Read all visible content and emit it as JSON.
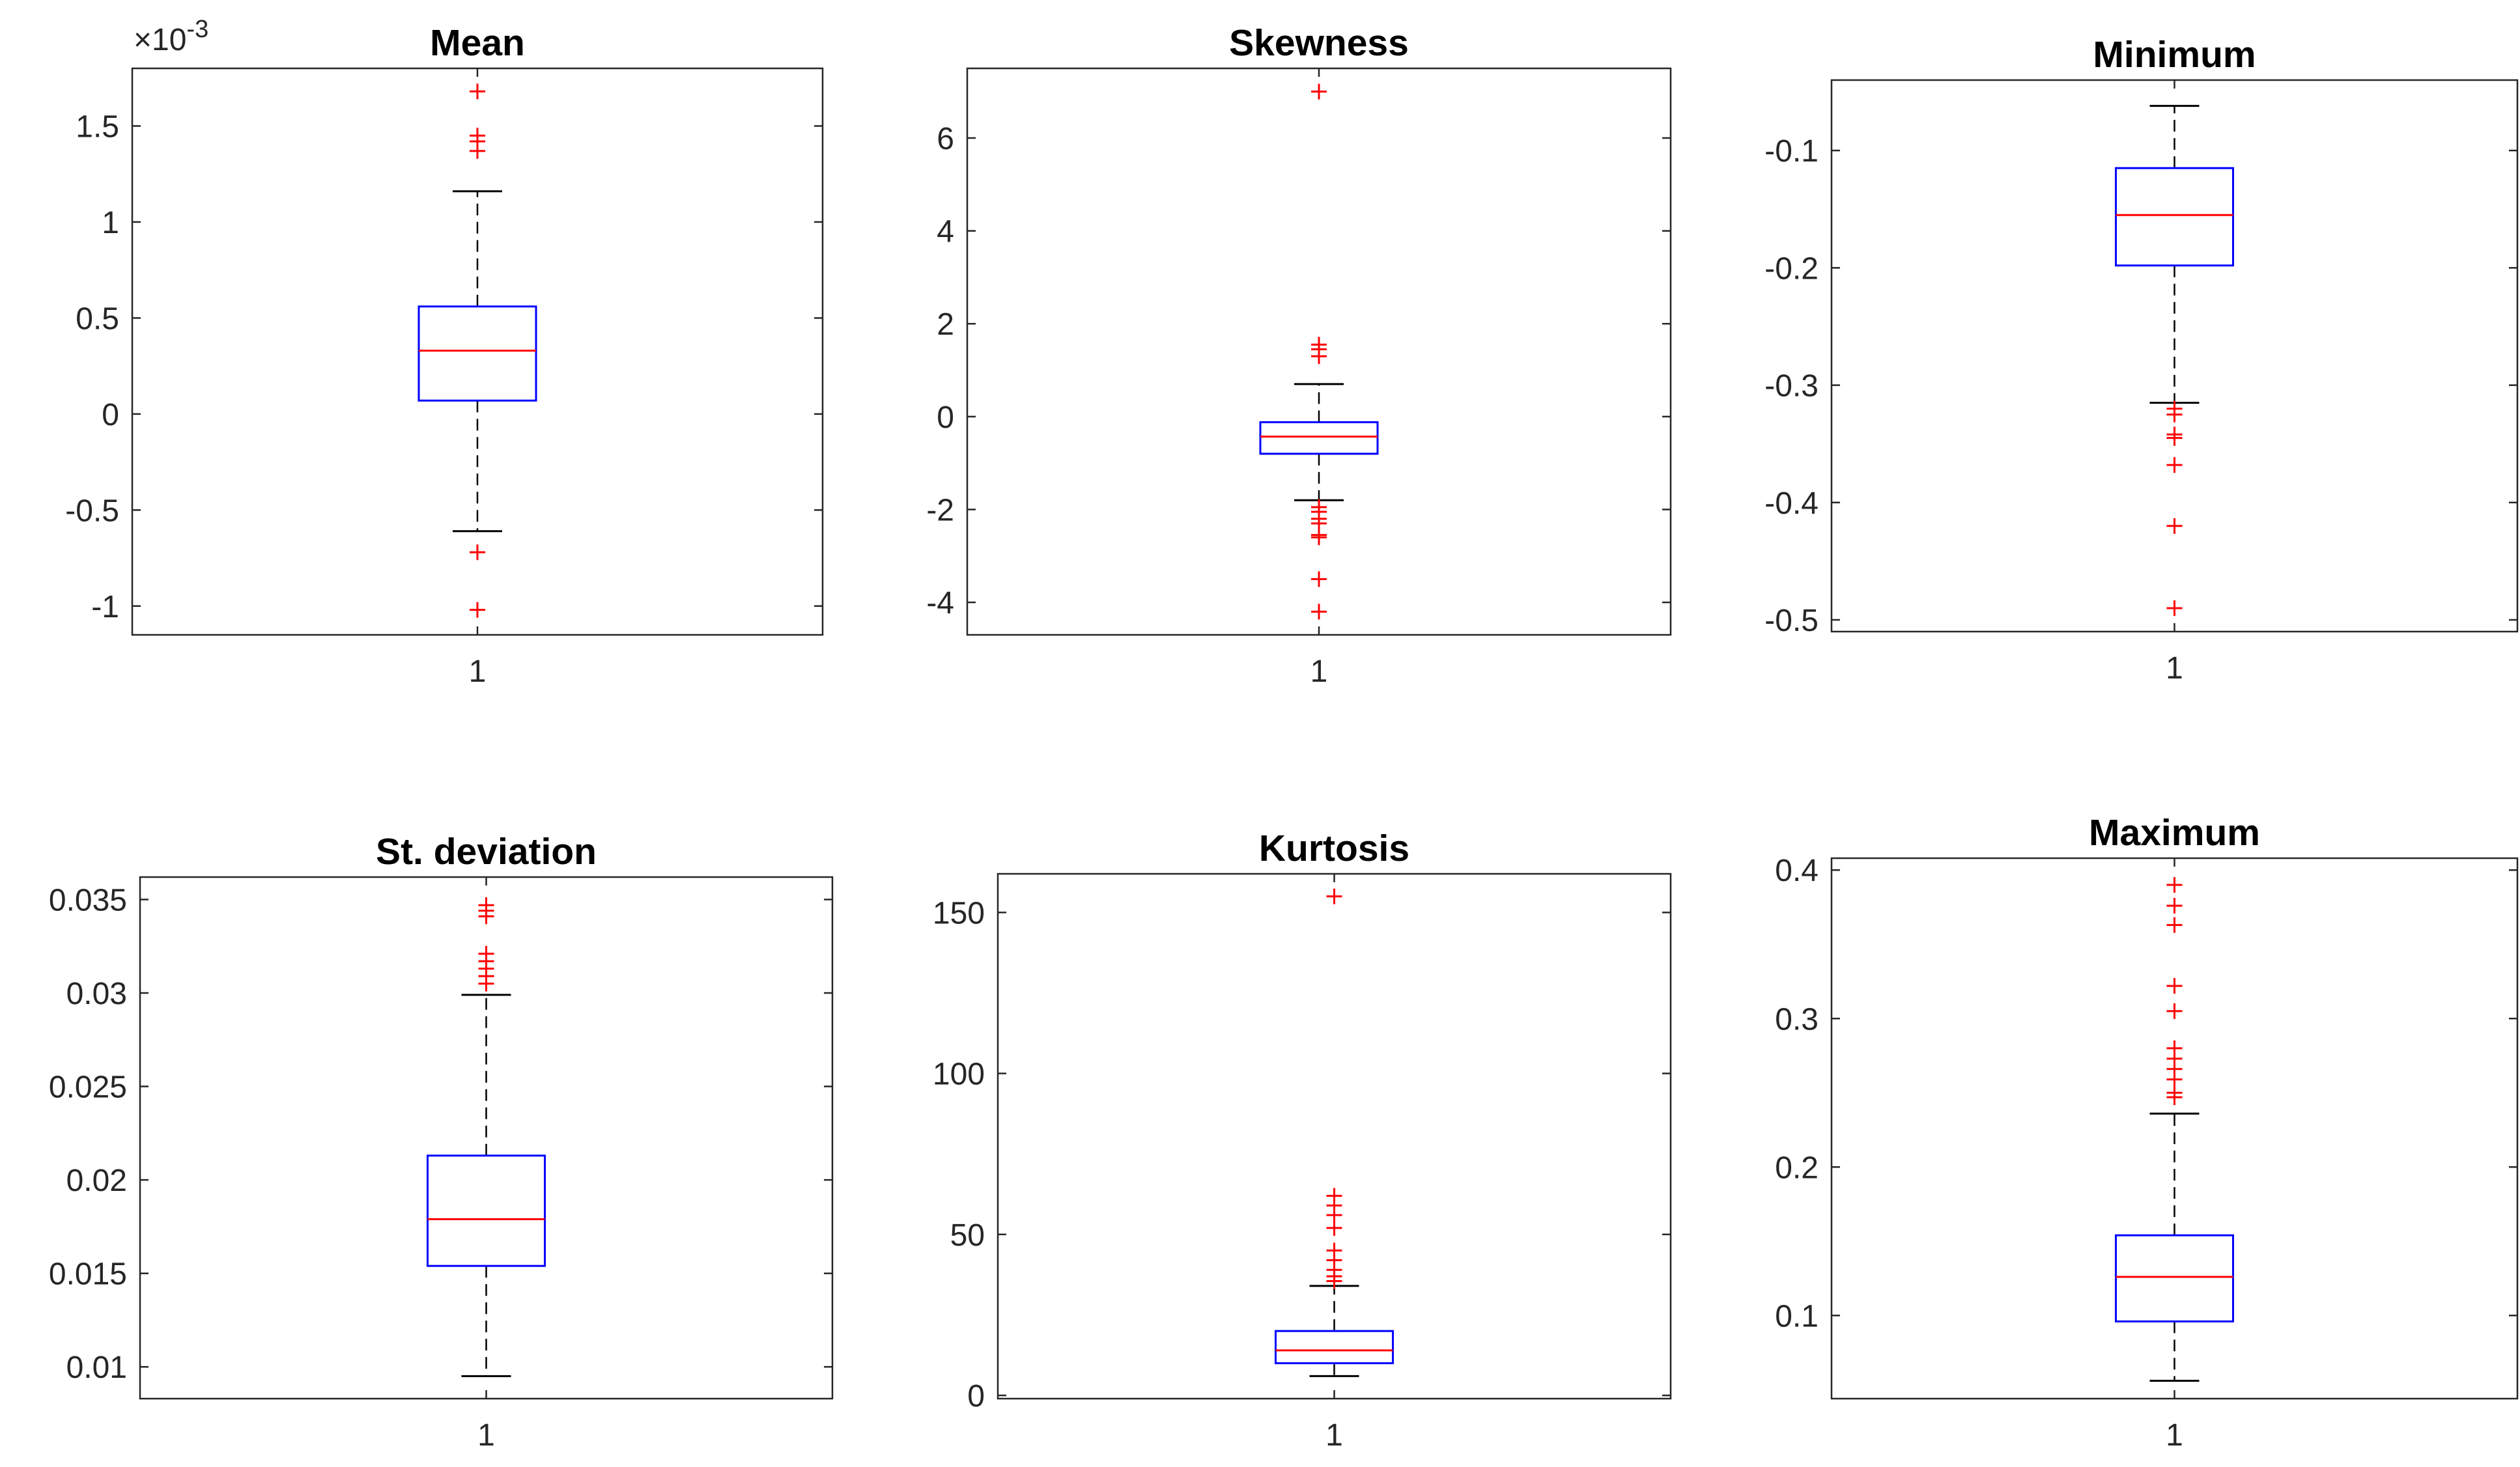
{
  "figure": {
    "colors": {
      "box": "#0000ff",
      "median": "#ff0000",
      "outlier": "#ff0000",
      "whisker": "#000000",
      "axis": "#262626"
    }
  },
  "chart_data": [
    {
      "type": "boxplot",
      "title": "Mean",
      "xticks": [
        "1"
      ],
      "ylim": [
        -0.00115,
        0.0018
      ],
      "yticks": [
        -0.001,
        -0.0005,
        0,
        0.0005,
        0.001,
        0.0015
      ],
      "ytick_labels": [
        "-1",
        "-0.5",
        "0",
        "0.5",
        "1",
        "1.5"
      ],
      "exponent_label": {
        "base": "×10",
        "power": "-3"
      },
      "box": {
        "whisker_low": -0.00061,
        "q1": 7e-05,
        "median": 0.00033,
        "q3": 0.00056,
        "whisker_high": 0.00116
      },
      "outliers": [
        0.00168,
        0.00145,
        0.00142,
        0.00137,
        -0.00072,
        -0.00102
      ]
    },
    {
      "type": "boxplot",
      "title": "Skewness",
      "xticks": [
        "1"
      ],
      "ylim": [
        -4.7,
        7.5
      ],
      "yticks": [
        -4,
        -2,
        0,
        2,
        4,
        6
      ],
      "ytick_labels": [
        "-4",
        "-2",
        "0",
        "2",
        "4",
        "6"
      ],
      "box": {
        "whisker_low": -1.8,
        "q1": -0.8,
        "median": -0.43,
        "q3": -0.12,
        "whisker_high": 0.7
      },
      "outliers": [
        7.0,
        1.55,
        1.45,
        1.3,
        -1.95,
        -2.05,
        -2.2,
        -2.3,
        -2.55,
        -2.6,
        -3.5,
        -4.2
      ]
    },
    {
      "type": "boxplot",
      "title": "Minimum",
      "xticks": [
        "1"
      ],
      "ylim": [
        -0.51,
        -0.04
      ],
      "yticks": [
        -0.5,
        -0.4,
        -0.3,
        -0.2,
        -0.1
      ],
      "ytick_labels": [
        "-0.5",
        "-0.4",
        "-0.3",
        "-0.2",
        "-0.1"
      ],
      "box": {
        "whisker_low": -0.315,
        "q1": -0.198,
        "median": -0.155,
        "q3": -0.115,
        "whisker_high": -0.062
      },
      "outliers": [
        -0.32,
        -0.325,
        -0.342,
        -0.345,
        -0.368,
        -0.42,
        -0.49
      ]
    },
    {
      "type": "boxplot",
      "title": "St. deviation",
      "xticks": [
        "1"
      ],
      "ylim": [
        0.0083,
        0.0362
      ],
      "yticks": [
        0.01,
        0.015,
        0.02,
        0.025,
        0.03,
        0.035
      ],
      "ytick_labels": [
        "0.01",
        "0.015",
        "0.02",
        "0.025",
        "0.03",
        "0.035"
      ],
      "box": {
        "whisker_low": 0.0095,
        "q1": 0.0154,
        "median": 0.0179,
        "q3": 0.0213,
        "whisker_high": 0.0299
      },
      "outliers": [
        0.0347,
        0.0344,
        0.0341,
        0.0321,
        0.0317,
        0.0313,
        0.0309,
        0.0305
      ]
    },
    {
      "type": "boxplot",
      "title": "Kurtosis",
      "xticks": [
        "1"
      ],
      "ylim": [
        -1,
        162
      ],
      "yticks": [
        0,
        50,
        100,
        150
      ],
      "ytick_labels": [
        "0",
        "50",
        "100",
        "150"
      ],
      "box": {
        "whisker_low": 6,
        "q1": 10,
        "median": 14,
        "q3": 20,
        "whisker_high": 34
      },
      "outliers": [
        155,
        62,
        59,
        56,
        52,
        45,
        42,
        39,
        37,
        35.5
      ]
    },
    {
      "type": "boxplot",
      "title": "Maximum",
      "xticks": [
        "1"
      ],
      "ylim": [
        0.044,
        0.408
      ],
      "yticks": [
        0.1,
        0.2,
        0.3,
        0.4
      ],
      "ytick_labels": [
        "0.1",
        "0.2",
        "0.3",
        "0.4"
      ],
      "box": {
        "whisker_low": 0.056,
        "q1": 0.096,
        "median": 0.126,
        "q3": 0.154,
        "whisker_high": 0.236
      },
      "outliers": [
        0.39,
        0.376,
        0.363,
        0.322,
        0.305,
        0.28,
        0.273,
        0.266,
        0.259,
        0.25,
        0.247
      ]
    }
  ]
}
